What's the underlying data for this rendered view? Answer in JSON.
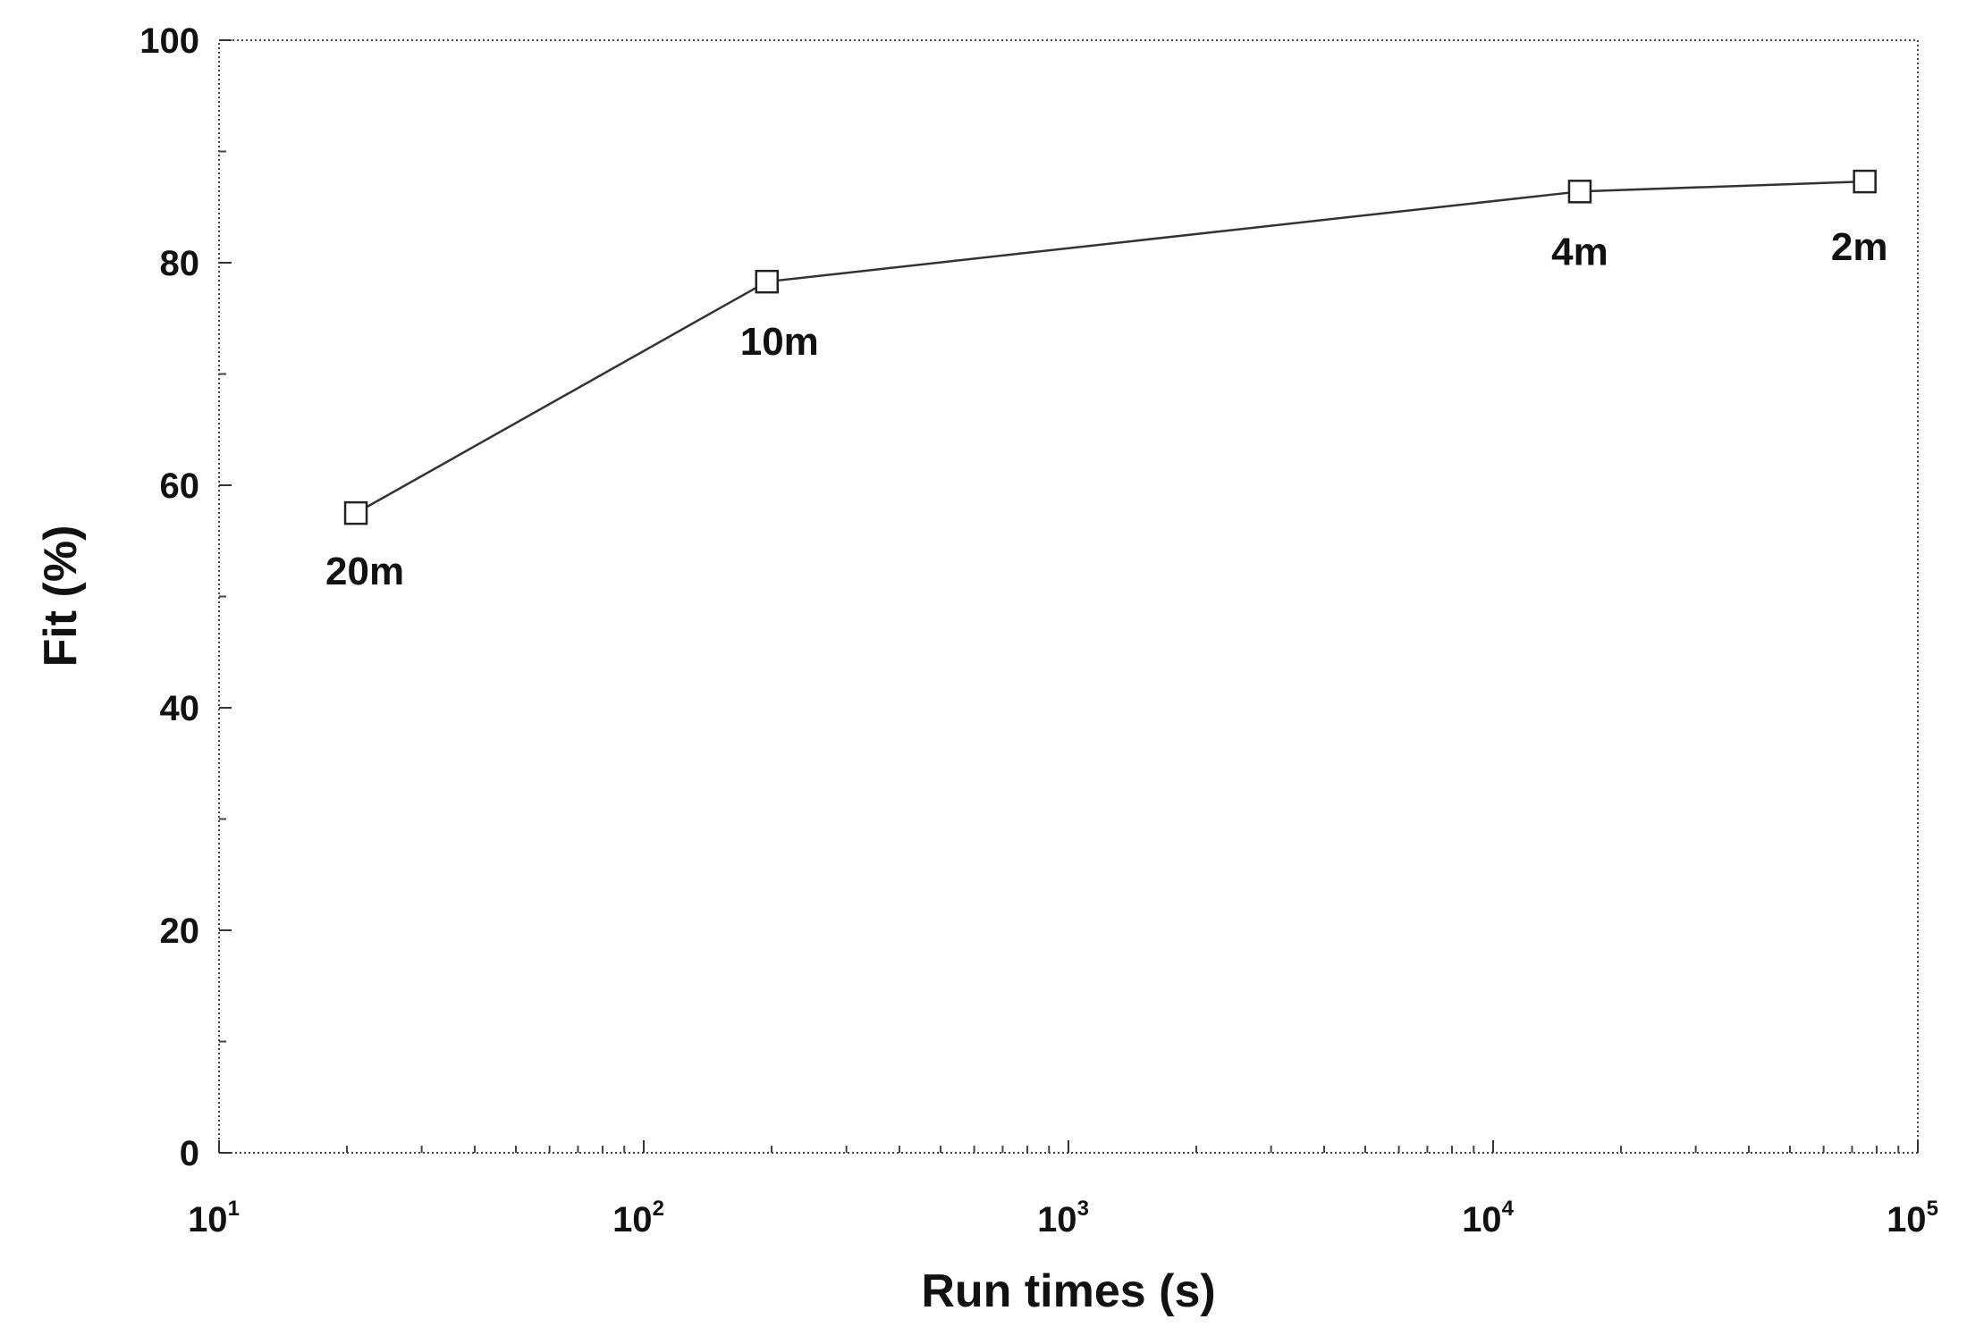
{
  "chart_data": {
    "type": "line",
    "title": "",
    "xlabel": "Run times (s)",
    "ylabel": "Fit (%)",
    "x_scale": "log",
    "xlim": [
      10,
      100000
    ],
    "ylim": [
      0,
      100
    ],
    "grid": false,
    "x_ticks": [
      {
        "value": 10,
        "base": "10",
        "exp": "1"
      },
      {
        "value": 100,
        "base": "10",
        "exp": "2"
      },
      {
        "value": 1000,
        "base": "10",
        "exp": "3"
      },
      {
        "value": 10000,
        "base": "10",
        "exp": "4"
      },
      {
        "value": 100000,
        "base": "10",
        "exp": "5"
      }
    ],
    "y_ticks": [
      "0",
      "20",
      "40",
      "60",
      "80",
      "100"
    ],
    "series": [
      {
        "marker": "open-square",
        "points": [
          {
            "x": 21,
            "y": 57.5,
            "label": "20m"
          },
          {
            "x": 195,
            "y": 78.3,
            "label": "10m"
          },
          {
            "x": 16000,
            "y": 86.4,
            "label": "4m"
          },
          {
            "x": 75000,
            "y": 87.3,
            "label": "2m"
          }
        ]
      }
    ]
  }
}
